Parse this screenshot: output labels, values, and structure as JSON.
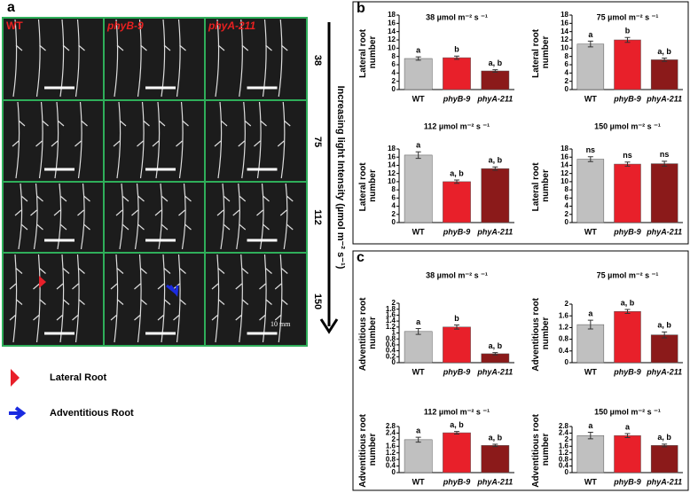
{
  "figure": {
    "panel_labels": [
      "a",
      "b",
      "c"
    ],
    "photo": {
      "columns": [
        "WT",
        "phyB-9",
        "phyA-211"
      ],
      "rows": [
        "38",
        "75",
        "112",
        "150"
      ],
      "axis_label": "Increasing light Intensity (µmol m⁻² s⁻¹)",
      "scale_bar": "10 mm"
    },
    "legend": [
      "Lateral Root",
      "Adventitious Root"
    ]
  },
  "chart_data": [
    {
      "type": "bar",
      "title": "38 µmol m⁻² s ⁻¹",
      "y_label": "Lateral root number",
      "categories": [
        "WT",
        "phyB-9",
        "phyA-211"
      ],
      "values": [
        7.5,
        7.7,
        4.5
      ],
      "errors": [
        0.4,
        0.4,
        0.3
      ],
      "letters": [
        "a",
        "b",
        "a, b"
      ],
      "colors": [
        "#c0c0c0",
        "#e8202a",
        "#8b1a1a"
      ],
      "ylim": [
        0,
        18
      ],
      "yticks": [
        0,
        2,
        4,
        6,
        8,
        10,
        12,
        14,
        16,
        18
      ]
    },
    {
      "type": "bar",
      "title": "75 µmol m⁻² s ⁻¹",
      "y_label": "Lateral root number",
      "categories": [
        "WT",
        "phyB-9",
        "phyA-211"
      ],
      "values": [
        11,
        12,
        7.2
      ],
      "errors": [
        0.7,
        0.6,
        0.4
      ],
      "letters": [
        "a",
        "b",
        "a, b"
      ],
      "colors": [
        "#c0c0c0",
        "#e8202a",
        "#8b1a1a"
      ],
      "ylim": [
        0,
        18
      ],
      "yticks": [
        0,
        2,
        4,
        6,
        8,
        10,
        12,
        14,
        16,
        18
      ]
    },
    {
      "type": "bar",
      "title": "112 µmol m⁻² s ⁻¹",
      "y_label": "Lateral root number",
      "categories": [
        "WT",
        "phyB-9",
        "phyA-211"
      ],
      "values": [
        16.5,
        10,
        13.2
      ],
      "errors": [
        0.8,
        0.4,
        0.4
      ],
      "letters": [
        "a",
        "a, b",
        "a, b"
      ],
      "colors": [
        "#c0c0c0",
        "#e8202a",
        "#8b1a1a"
      ],
      "ylim": [
        0,
        18
      ],
      "yticks": [
        0,
        2,
        4,
        6,
        8,
        10,
        12,
        14,
        16,
        18
      ]
    },
    {
      "type": "bar",
      "title": "150 µmol m⁻² s ⁻¹",
      "y_label": "Lateral root number",
      "categories": [
        "WT",
        "phyB-9",
        "phyA-211"
      ],
      "values": [
        15.5,
        14.3,
        14.4
      ],
      "errors": [
        0.6,
        0.5,
        0.6
      ],
      "letters": [
        "ns",
        "ns",
        "ns"
      ],
      "colors": [
        "#c0c0c0",
        "#e8202a",
        "#8b1a1a"
      ],
      "ylim": [
        0,
        18
      ],
      "yticks": [
        0,
        2,
        4,
        6,
        8,
        10,
        12,
        14,
        16,
        18
      ]
    },
    {
      "type": "bar",
      "title": "38 µmol m⁻² s ⁻¹",
      "y_label": "Adventitious root number",
      "categories": [
        "WT",
        "phyB-9",
        "phyA-211"
      ],
      "values": [
        1.05,
        1.2,
        0.3
      ],
      "errors": [
        0.1,
        0.07,
        0.04
      ],
      "letters": [
        "a",
        "b",
        "a, b"
      ],
      "colors": [
        "#c0c0c0",
        "#e8202a",
        "#8b1a1a"
      ],
      "ylim": [
        0,
        2
      ],
      "yticks": [
        0,
        0.2,
        0.4,
        0.6,
        0.8,
        1,
        1.2,
        1.4,
        1.6,
        1.8,
        2
      ]
    },
    {
      "type": "bar",
      "title": "75 µmol m⁻² s ⁻¹",
      "y_label": "Adventitious root number",
      "categories": [
        "WT",
        "phyB-9",
        "phyA-211"
      ],
      "values": [
        1.3,
        1.75,
        0.95
      ],
      "errors": [
        0.15,
        0.07,
        0.1
      ],
      "letters": [
        "a",
        "a, b",
        "a, b"
      ],
      "colors": [
        "#c0c0c0",
        "#e8202a",
        "#8b1a1a"
      ],
      "ylim": [
        0,
        2
      ],
      "yticks": [
        0,
        0.4,
        0.8,
        1.2,
        1.6,
        2
      ]
    },
    {
      "type": "bar",
      "title": "112 µmol m⁻² s ⁻¹",
      "y_label": "Adventitious root number",
      "categories": [
        "WT",
        "phyB-9",
        "phyA-211"
      ],
      "values": [
        2.0,
        2.42,
        1.65
      ],
      "errors": [
        0.15,
        0.08,
        0.07
      ],
      "letters": [
        "a",
        "a, b",
        "a, b"
      ],
      "colors": [
        "#c0c0c0",
        "#e8202a",
        "#8b1a1a"
      ],
      "ylim": [
        0,
        2.8
      ],
      "yticks": [
        0,
        0.4,
        0.8,
        1.2,
        1.6,
        2,
        2.4,
        2.8
      ]
    },
    {
      "type": "bar",
      "title": "150 µmol m⁻² s ⁻¹",
      "y_label": "Adventitious root number",
      "categories": [
        "WT",
        "phyB-9",
        "phyA-211"
      ],
      "values": [
        2.25,
        2.25,
        1.65
      ],
      "errors": [
        0.2,
        0.12,
        0.08
      ],
      "letters": [
        "a",
        "a",
        "a, b"
      ],
      "colors": [
        "#c0c0c0",
        "#e8202a",
        "#8b1a1a"
      ],
      "ylim": [
        0,
        2.8
      ],
      "yticks": [
        0,
        0.4,
        0.8,
        1.2,
        1.6,
        2,
        2.4,
        2.8
      ]
    }
  ]
}
